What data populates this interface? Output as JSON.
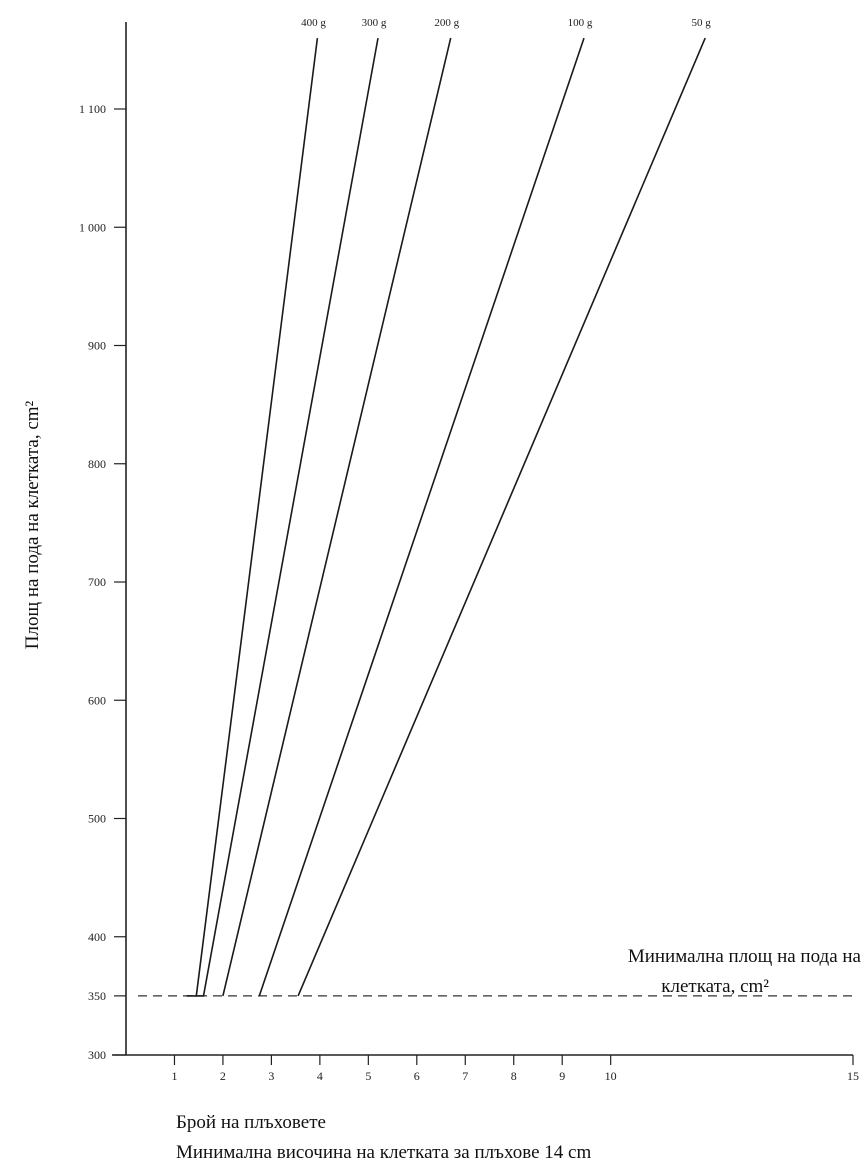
{
  "chart_data": {
    "type": "line",
    "title": "",
    "ylabel": "Площ на пода на клетката, cm²",
    "xlabel": "Брой на плъховете",
    "xlabel_sub": "Минимална височина на клетката за плъхове 14 cm",
    "annotation": "Минимална площ на пода на клетката, cm²",
    "annotation_line1": "Минимална площ на пода на",
    "annotation_line2": "клетката, cm²",
    "xlim": [
      0,
      15
    ],
    "ylim": [
      300,
      1170
    ],
    "x_ticks": [
      1,
      2,
      3,
      4,
      5,
      6,
      7,
      8,
      9,
      10,
      15
    ],
    "x_tick_labels": [
      "1",
      "2",
      "3",
      "4",
      "5",
      "6",
      "7",
      "8",
      "9",
      "10",
      "15"
    ],
    "y_ticks": [
      300,
      350,
      400,
      500,
      600,
      700,
      800,
      900,
      1000,
      1100
    ],
    "y_tick_labels": [
      "300",
      "350",
      "400",
      "500",
      "600",
      "700",
      "800",
      "900",
      "1 000",
      "1 100"
    ],
    "minimum_area": 350,
    "grid": false,
    "legend": "none",
    "series": [
      {
        "name": "400 g",
        "x": [
          1.25,
          1.45,
          3.95
        ],
        "y": [
          350,
          350,
          1160
        ]
      },
      {
        "name": "300 g",
        "x": [
          1.45,
          1.6,
          5.2
        ],
        "y": [
          350,
          350,
          1160
        ]
      },
      {
        "name": "200 g",
        "x": [
          2.0,
          2.0,
          6.7
        ],
        "y": [
          350,
          350,
          1160
        ]
      },
      {
        "name": "100 g",
        "x": [
          2.75,
          2.75,
          9.45
        ],
        "y": [
          350,
          350,
          1160
        ]
      },
      {
        "name": "50 g",
        "x": [
          3.55,
          3.55,
          11.95
        ],
        "y": [
          350,
          350,
          1160
        ]
      }
    ]
  }
}
